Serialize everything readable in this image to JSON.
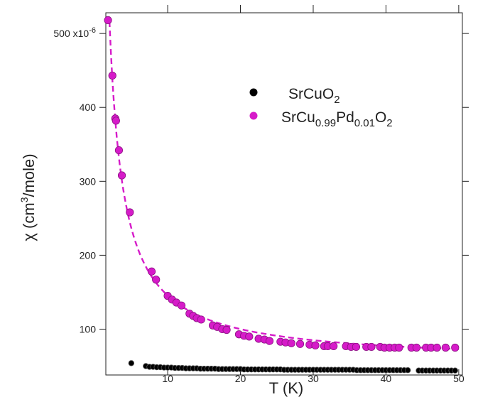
{
  "chart_data": {
    "type": "scatter",
    "title": "",
    "xlabel": "T (K)",
    "ylabel_main": "χ (cm",
    "ylabel_sup": "3",
    "ylabel_tail": "/mole)",
    "xlim": [
      1.5,
      50.5
    ],
    "ylim": [
      38,
      528
    ],
    "x_ticks": [
      10,
      20,
      30,
      40,
      50
    ],
    "y_ticks": [
      {
        "value": 100,
        "label": "100"
      },
      {
        "value": 200,
        "label": "200"
      },
      {
        "value": 300,
        "label": "300"
      },
      {
        "value": 400,
        "label": "400"
      },
      {
        "value": 500,
        "label": "500 x10"
      }
    ],
    "y_multiplier_exponent": "-6",
    "legend_position": "top-right",
    "series": [
      {
        "name": "SrCuO2",
        "name_parts": [
          {
            "text": "SrCuO",
            "sub": false
          },
          {
            "text": "2",
            "sub": true
          }
        ],
        "color": "#000000",
        "marker": "circle",
        "x": [
          5.0,
          7.0,
          7.5,
          8.0,
          8.5,
          9.0,
          9.5,
          10.0,
          10.5,
          11.0,
          11.5,
          12.0,
          12.5,
          13.0,
          13.5,
          14.0,
          14.5,
          15.0,
          15.5,
          16.0,
          16.5,
          17.0,
          17.5,
          18.0,
          18.5,
          19.0,
          19.5,
          20.0,
          20.5,
          21.0,
          21.5,
          22.0,
          22.5,
          23.0,
          23.5,
          24.0,
          24.5,
          25.0,
          25.5,
          26.0,
          26.5,
          27.0,
          27.5,
          28.0,
          28.5,
          29.0,
          29.5,
          30.0,
          30.5,
          31.0,
          31.5,
          32.0,
          32.5,
          33.0,
          33.5,
          34.0,
          34.5,
          35.0,
          35.5,
          36.0,
          36.5,
          37.0,
          37.5,
          38.0,
          38.5,
          39.0,
          39.5,
          40.0,
          40.5,
          41.0,
          41.5,
          42.0,
          42.5,
          43.0,
          44.5,
          45.0,
          45.5,
          46.0,
          46.5,
          47.0,
          47.5,
          48.0,
          48.5,
          49.0,
          49.5
        ],
        "y": [
          54,
          50,
          49,
          49,
          48.5,
          48.5,
          48,
          48,
          48,
          47.5,
          47.5,
          47.5,
          47,
          47,
          47,
          47,
          46.5,
          46.5,
          46.5,
          46.5,
          46.5,
          46,
          46,
          46,
          46,
          46,
          46,
          46,
          45.5,
          45.5,
          45.5,
          45.5,
          45.5,
          45.5,
          45.5,
          45.5,
          45.5,
          45.5,
          45.5,
          45,
          45,
          45,
          45,
          45,
          45,
          45,
          45,
          45,
          45,
          45,
          45,
          45,
          45,
          45,
          45,
          45,
          45,
          45,
          45,
          44.5,
          44.5,
          44.5,
          44.5,
          44.5,
          44.5,
          44.5,
          44.5,
          44.5,
          44.5,
          44.5,
          44.5,
          44.5,
          44.5,
          44.5,
          44,
          44,
          44,
          44,
          44,
          44,
          44,
          44,
          44,
          44,
          44
        ]
      },
      {
        "name": "SrCu0.99Pd0.01O2",
        "name_parts": [
          {
            "text": "SrCu",
            "sub": false
          },
          {
            "text": "0.99",
            "sub": true
          },
          {
            "text": "Pd",
            "sub": false
          },
          {
            "text": "0.01",
            "sub": true
          },
          {
            "text": "O",
            "sub": false
          },
          {
            "text": "2",
            "sub": true
          }
        ],
        "color": "#d61bc9",
        "marker": "circle",
        "x": [
          1.8,
          2.4,
          2.8,
          2.9,
          3.3,
          3.7,
          4.8,
          7.8,
          8.4,
          10.0,
          10.6,
          11.2,
          11.9,
          13.0,
          13.5,
          14.0,
          14.6,
          16.2,
          16.8,
          17.5,
          18.1,
          19.8,
          20.5,
          21.2,
          22.5,
          23.3,
          24.0,
          25.5,
          26.2,
          27.0,
          28.2,
          29.5,
          30.3,
          31.5,
          32.0,
          32.8,
          34.5,
          35.2,
          35.9,
          37.3,
          38.0,
          39.2,
          39.8,
          40.5,
          41.2,
          41.8,
          43.5,
          44.2,
          45.5,
          46.2,
          47.0,
          48.2,
          49.5
        ],
        "y": [
          518,
          443,
          385,
          382,
          342,
          308,
          258,
          178,
          167,
          145,
          140,
          136,
          132,
          121,
          118,
          115,
          113,
          105,
          103,
          100,
          99,
          93,
          91,
          90,
          87,
          86,
          84,
          83,
          82,
          81,
          80,
          79,
          78,
          77,
          77,
          77,
          77,
          76,
          76,
          76,
          76,
          76,
          75,
          75,
          75,
          75,
          75,
          75,
          75,
          75,
          75,
          75,
          75
        ]
      }
    ],
    "fit_curve": {
      "name": "fit",
      "color": "#d61bc9",
      "style": "dashed",
      "model": "y = a + c / (x - t)",
      "params": {
        "a": 55,
        "c": 900,
        "t": 0.05
      },
      "x_range": [
        1.8,
        50
      ]
    }
  }
}
